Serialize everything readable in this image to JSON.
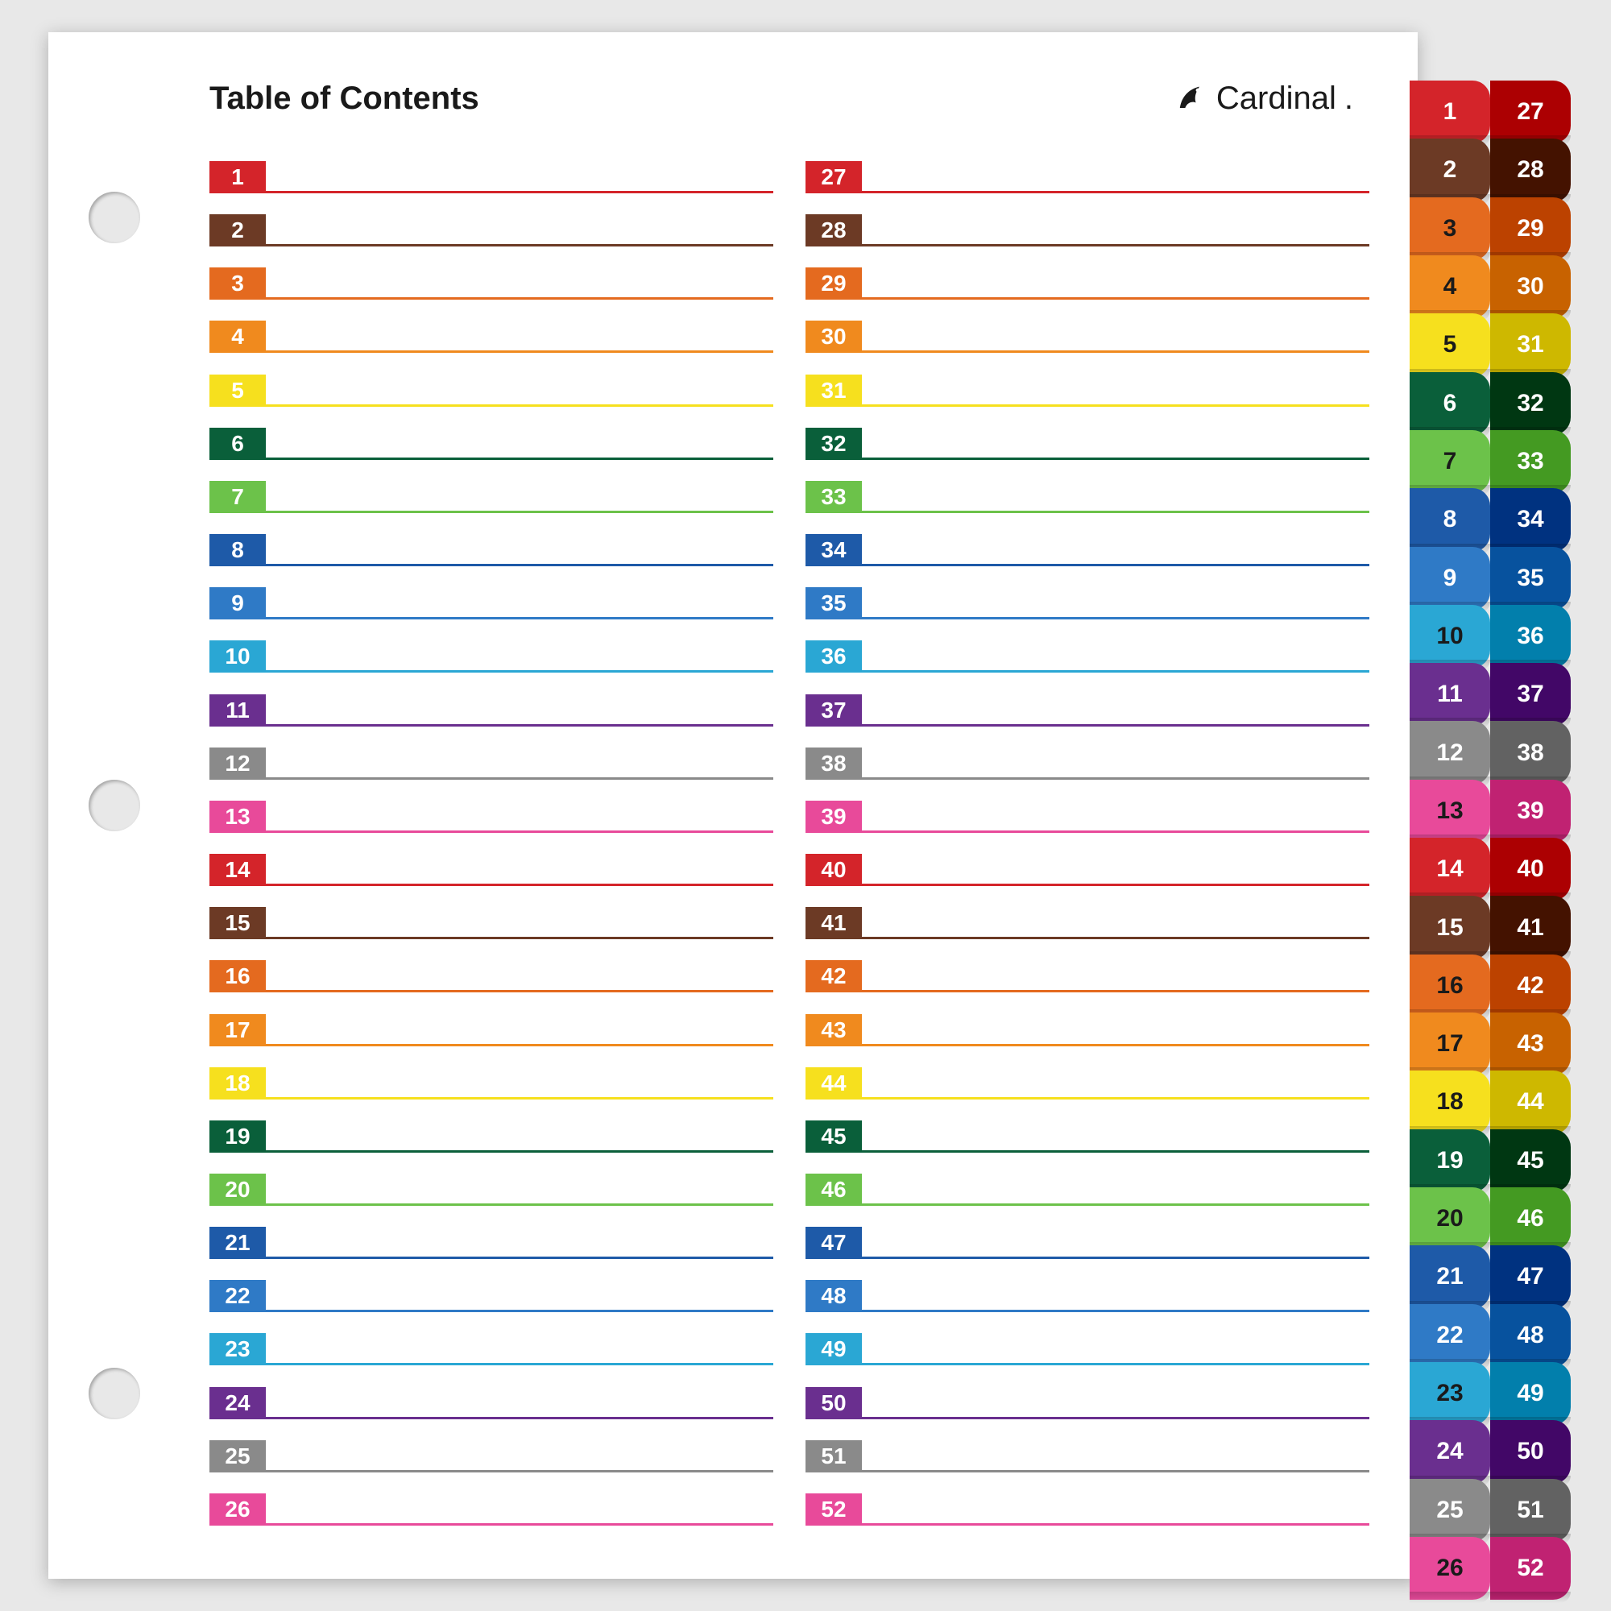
{
  "title": "Table of Contents",
  "brand": "Cardinal",
  "hole_positions_pct": [
    12,
    50,
    88
  ],
  "entries": [
    {
      "n": 1,
      "color": "#d4242a"
    },
    {
      "n": 2,
      "color": "#6c3a25"
    },
    {
      "n": 3,
      "color": "#e46a1f"
    },
    {
      "n": 4,
      "color": "#f08a1e"
    },
    {
      "n": 5,
      "color": "#f6e01e"
    },
    {
      "n": 6,
      "color": "#0a5f3a"
    },
    {
      "n": 7,
      "color": "#6cc24a"
    },
    {
      "n": 8,
      "color": "#1e5aa8"
    },
    {
      "n": 9,
      "color": "#2f7ac6"
    },
    {
      "n": 10,
      "color": "#2aa7d4"
    },
    {
      "n": 11,
      "color": "#6a2f8f"
    },
    {
      "n": 12,
      "color": "#8a8a8a"
    },
    {
      "n": 13,
      "color": "#e84a9a"
    },
    {
      "n": 14,
      "color": "#d4242a"
    },
    {
      "n": 15,
      "color": "#6c3a25"
    },
    {
      "n": 16,
      "color": "#e46a1f"
    },
    {
      "n": 17,
      "color": "#f08a1e"
    },
    {
      "n": 18,
      "color": "#f6e01e"
    },
    {
      "n": 19,
      "color": "#0a5f3a"
    },
    {
      "n": 20,
      "color": "#6cc24a"
    },
    {
      "n": 21,
      "color": "#1e5aa8"
    },
    {
      "n": 22,
      "color": "#2f7ac6"
    },
    {
      "n": 23,
      "color": "#2aa7d4"
    },
    {
      "n": 24,
      "color": "#6a2f8f"
    },
    {
      "n": 25,
      "color": "#8a8a8a"
    },
    {
      "n": 26,
      "color": "#e84a9a"
    },
    {
      "n": 27,
      "color": "#d4242a"
    },
    {
      "n": 28,
      "color": "#6c3a25"
    },
    {
      "n": 29,
      "color": "#e46a1f"
    },
    {
      "n": 30,
      "color": "#f08a1e"
    },
    {
      "n": 31,
      "color": "#f6e01e"
    },
    {
      "n": 32,
      "color": "#0a5f3a"
    },
    {
      "n": 33,
      "color": "#6cc24a"
    },
    {
      "n": 34,
      "color": "#1e5aa8"
    },
    {
      "n": 35,
      "color": "#2f7ac6"
    },
    {
      "n": 36,
      "color": "#2aa7d4"
    },
    {
      "n": 37,
      "color": "#6a2f8f"
    },
    {
      "n": 38,
      "color": "#8a8a8a"
    },
    {
      "n": 39,
      "color": "#e84a9a"
    },
    {
      "n": 40,
      "color": "#d4242a"
    },
    {
      "n": 41,
      "color": "#6c3a25"
    },
    {
      "n": 42,
      "color": "#e46a1f"
    },
    {
      "n": 43,
      "color": "#f08a1e"
    },
    {
      "n": 44,
      "color": "#f6e01e"
    },
    {
      "n": 45,
      "color": "#0a5f3a"
    },
    {
      "n": 46,
      "color": "#6cc24a"
    },
    {
      "n": 47,
      "color": "#1e5aa8"
    },
    {
      "n": 48,
      "color": "#2f7ac6"
    },
    {
      "n": 49,
      "color": "#2aa7d4"
    },
    {
      "n": 50,
      "color": "#6a2f8f"
    },
    {
      "n": 51,
      "color": "#8a8a8a"
    },
    {
      "n": 52,
      "color": "#e84a9a"
    }
  ],
  "tab_dark_text_indices": [
    1,
    2,
    6,
    8,
    9,
    11,
    12,
    14,
    15,
    19,
    21,
    22,
    24,
    25
  ],
  "rows_per_column": 26,
  "tabs_per_column": 26
}
